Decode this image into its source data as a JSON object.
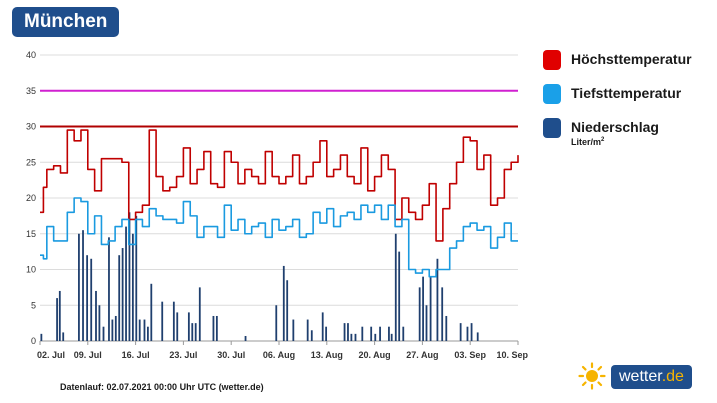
{
  "header": {
    "title": "München"
  },
  "legend": {
    "items": [
      {
        "label": "Höchsttemperatur",
        "color": "#e00000"
      },
      {
        "label": "Tiefsttemperatur",
        "color": "#1aa0e8"
      },
      {
        "label": "Niederschlag",
        "color": "#1f4e8c",
        "unit": "Liter/m",
        "unit_sup": "2"
      }
    ]
  },
  "footer": {
    "text": "Datenlauf: 02.07.2021 00:00 Uhr UTC (wetter.de)"
  },
  "brand": {
    "name": "wetter",
    "tld": ".de"
  },
  "chart_data": {
    "type": "line",
    "title": "München",
    "ylim": [
      0,
      40
    ],
    "yticks": [
      0,
      5,
      10,
      15,
      20,
      25,
      30,
      35,
      40
    ],
    "xlim": [
      0,
      70
    ],
    "xtick_labels": [
      "02. Jul",
      "09. Jul",
      "16. Jul",
      "23. Jul",
      "30. Jul",
      "06. Aug",
      "13. Aug",
      "20. Aug",
      "27. Aug",
      "03. Sep",
      "10. Sep"
    ],
    "reference_lines": [
      {
        "name": "30 °C",
        "value": 30,
        "color": "#b00000"
      },
      {
        "name": "35 °C",
        "value": 35,
        "color": "#d020d0"
      }
    ],
    "series": [
      {
        "name": "Höchsttemperatur",
        "type": "step",
        "color": "#c00000",
        "x": [
          0,
          0.5,
          1,
          2,
          3,
          4,
          5,
          6,
          7,
          8,
          9,
          10,
          11,
          12,
          13,
          14,
          15,
          16,
          17,
          18,
          19,
          20,
          21,
          22,
          23,
          24,
          25,
          26,
          27,
          28,
          29,
          30,
          31,
          32,
          33,
          34,
          35,
          36,
          37,
          38,
          39,
          40,
          41,
          42,
          43,
          44,
          45,
          46,
          47,
          48,
          49,
          50,
          51,
          52,
          53,
          54,
          55,
          56,
          57,
          58,
          59,
          60,
          61,
          62,
          63,
          64,
          65,
          66,
          67,
          68,
          69,
          70
        ],
        "values": [
          18,
          21.5,
          24,
          24.5,
          23.5,
          29.5,
          28,
          29.5,
          24,
          21,
          25.5,
          25.5,
          25.5,
          25,
          17,
          18,
          19,
          29.5,
          23,
          21,
          21.5,
          23,
          27,
          22,
          24,
          26.5,
          22,
          21.5,
          26.5,
          25,
          22,
          24,
          23,
          22,
          26.5,
          23,
          22,
          23,
          26,
          22,
          23,
          25,
          28,
          23,
          24,
          26,
          23,
          22,
          27,
          21,
          23,
          26,
          24,
          17,
          20,
          18,
          17,
          19,
          22,
          14,
          18.5,
          22,
          25,
          28.5,
          28,
          24,
          26,
          19,
          20,
          24,
          25,
          26
        ]
      },
      {
        "name": "Tiefsttemperatur",
        "type": "step",
        "color": "#1a9ae0",
        "x": [
          0,
          0.5,
          1,
          2,
          3,
          4,
          5,
          6,
          7,
          8,
          9,
          10,
          11,
          12,
          13,
          14,
          15,
          16,
          17,
          18,
          19,
          20,
          21,
          22,
          23,
          24,
          25,
          26,
          27,
          28,
          29,
          30,
          31,
          32,
          33,
          34,
          35,
          36,
          37,
          38,
          39,
          40,
          41,
          42,
          43,
          44,
          45,
          46,
          47,
          48,
          49,
          50,
          51,
          52,
          53,
          54,
          55,
          56,
          57,
          58,
          59,
          60,
          61,
          62,
          63,
          64,
          65,
          66,
          67,
          68,
          69,
          70
        ],
        "values": [
          12,
          11.5,
          16,
          14,
          14,
          18,
          20,
          19.5,
          15,
          17.5,
          13.5,
          14,
          16,
          17,
          13.5,
          17,
          16,
          18.5,
          17.5,
          17,
          17,
          16.5,
          19.5,
          17.5,
          14.5,
          16,
          16,
          14.5,
          19,
          15.5,
          17,
          15,
          16,
          16.5,
          14.5,
          17,
          15.5,
          16,
          17,
          14.5,
          15,
          18,
          16.5,
          18.5,
          16,
          17.5,
          18,
          17,
          19,
          18,
          19,
          17,
          19,
          16,
          17,
          10,
          9.5,
          10,
          9,
          10,
          10,
          13,
          14,
          16,
          16.5,
          15.5,
          16,
          13,
          14.5,
          16.5,
          14,
          14
        ]
      },
      {
        "name": "Niederschlag",
        "type": "bar",
        "color": "#1f3f6e",
        "x": [
          0.2,
          2.5,
          2.9,
          3.4,
          5.7,
          6.3,
          6.9,
          7.5,
          8.2,
          8.7,
          9.3,
          10.1,
          10.6,
          11.1,
          11.6,
          12.1,
          12.6,
          13.1,
          13.6,
          14.1,
          14.6,
          15.3,
          15.8,
          16.3,
          17.9,
          19.6,
          20.1,
          21.8,
          22.3,
          22.8,
          23.4,
          25.4,
          25.9,
          30.1,
          34.6,
          35.7,
          36.2,
          37.1,
          39.2,
          39.8,
          41.4,
          41.9,
          44.6,
          45.1,
          45.6,
          46.2,
          47.2,
          48.5,
          49.1,
          49.8,
          51.1,
          51.5,
          52.1,
          52.6,
          53.2,
          55.6,
          56.1,
          56.6,
          57.2,
          58.2,
          58.9,
          59.5,
          61.6,
          62.6,
          63.2,
          64.1
        ],
        "values": [
          1,
          6,
          7,
          1.2,
          15,
          15.5,
          12,
          11.5,
          7,
          5,
          2,
          14.5,
          3,
          3.5,
          12,
          13,
          16,
          18,
          15,
          17.5,
          3,
          3,
          2,
          8,
          5.5,
          5.5,
          4,
          4,
          2.5,
          2.5,
          7.5,
          3.5,
          3.5,
          0.7,
          5,
          10.5,
          8.5,
          3,
          3,
          1.5,
          4,
          2,
          2.5,
          2.5,
          1,
          1,
          2,
          2,
          1,
          2,
          2,
          1,
          15,
          12.5,
          2,
          7.5,
          9,
          5,
          9,
          11.5,
          7.5,
          3.5,
          2.5,
          2,
          2.5,
          1.2
        ]
      }
    ]
  }
}
